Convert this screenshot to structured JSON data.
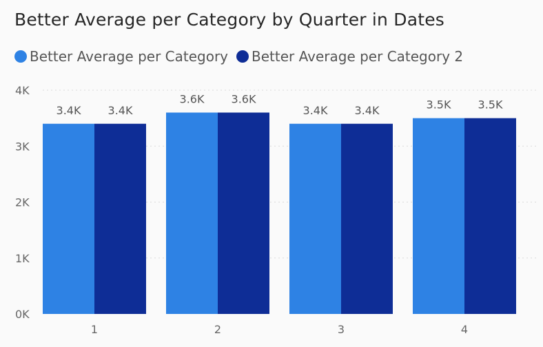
{
  "chart_data": {
    "type": "bar",
    "title": "Better Average per Category by Quarter in Dates",
    "xlabel": "",
    "ylabel": "",
    "categories": [
      "1",
      "2",
      "3",
      "4"
    ],
    "series": [
      {
        "name": "Better Average per Category",
        "color": "#2e82e4",
        "values": [
          3400,
          3600,
          3400,
          3500
        ],
        "labels": [
          "3.4K",
          "3.6K",
          "3.4K",
          "3.5K"
        ]
      },
      {
        "name": "Better Average per Category 2",
        "color": "#0e2d96",
        "values": [
          3400,
          3600,
          3400,
          3500
        ],
        "labels": [
          "3.4K",
          "3.6K",
          "3.4K",
          "3.5K"
        ]
      }
    ],
    "ylim": [
      0,
      4000
    ],
    "yticks": [
      {
        "value": 0,
        "label": "0K"
      },
      {
        "value": 1000,
        "label": "1K"
      },
      {
        "value": 2000,
        "label": "2K"
      },
      {
        "value": 3000,
        "label": "3K"
      },
      {
        "value": 4000,
        "label": "4K"
      }
    ],
    "grid": true,
    "legend_position": "top-left"
  }
}
